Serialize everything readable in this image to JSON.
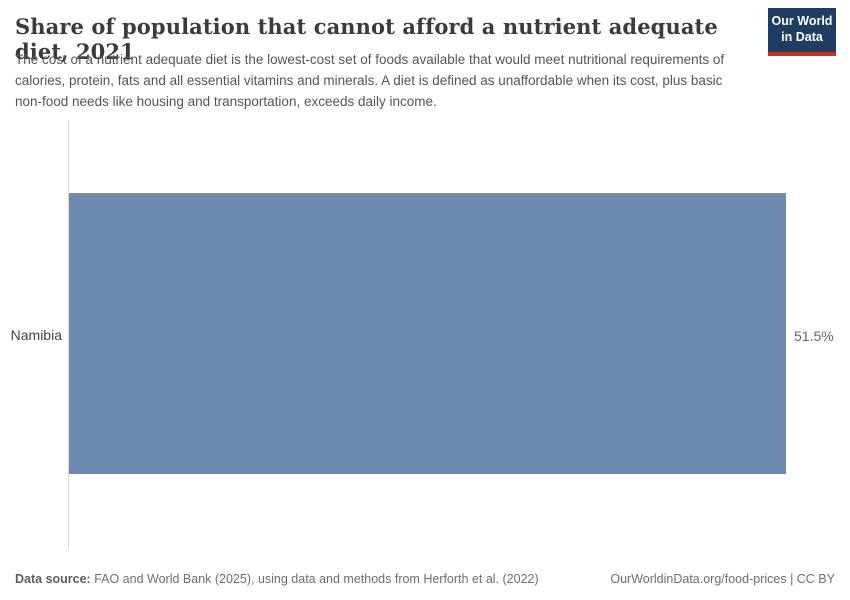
{
  "header": {
    "title": "Share of population that cannot afford a nutrient adequate diet, 2021",
    "subtitle": "The cost of a nutrient adequate diet is the lowest-cost set of foods available that would meet nutritional requirements of calories, protein, fats and all essential vitamins and minerals. A diet is defined as unaffordable when its cost, plus basic non-food needs like housing and transportation, exceeds daily income.",
    "logo": {
      "line1": "Our World",
      "line2": "in Data",
      "bg_color": "#1d3d63",
      "accent_color": "#cf2e27"
    }
  },
  "chart_data": {
    "type": "bar",
    "orientation": "horizontal",
    "title": "Share of population that cannot afford a nutrient adequate diet, 2021",
    "categories": [
      "Namibia"
    ],
    "values": [
      51.5
    ],
    "value_labels": [
      "51.5%"
    ],
    "unit": "%",
    "xlim": [
      0,
      51.5
    ],
    "grid": false,
    "legend": "none",
    "bar_color": "#6e89b2",
    "axis_line_color": "#d9d9d9"
  },
  "footer": {
    "source_label": "Data source:",
    "source_text": " FAO and World Bank (2025), using data and methods from Herforth et al. (2022)",
    "right_text": "OurWorldinData.org/food-prices | CC BY"
  }
}
